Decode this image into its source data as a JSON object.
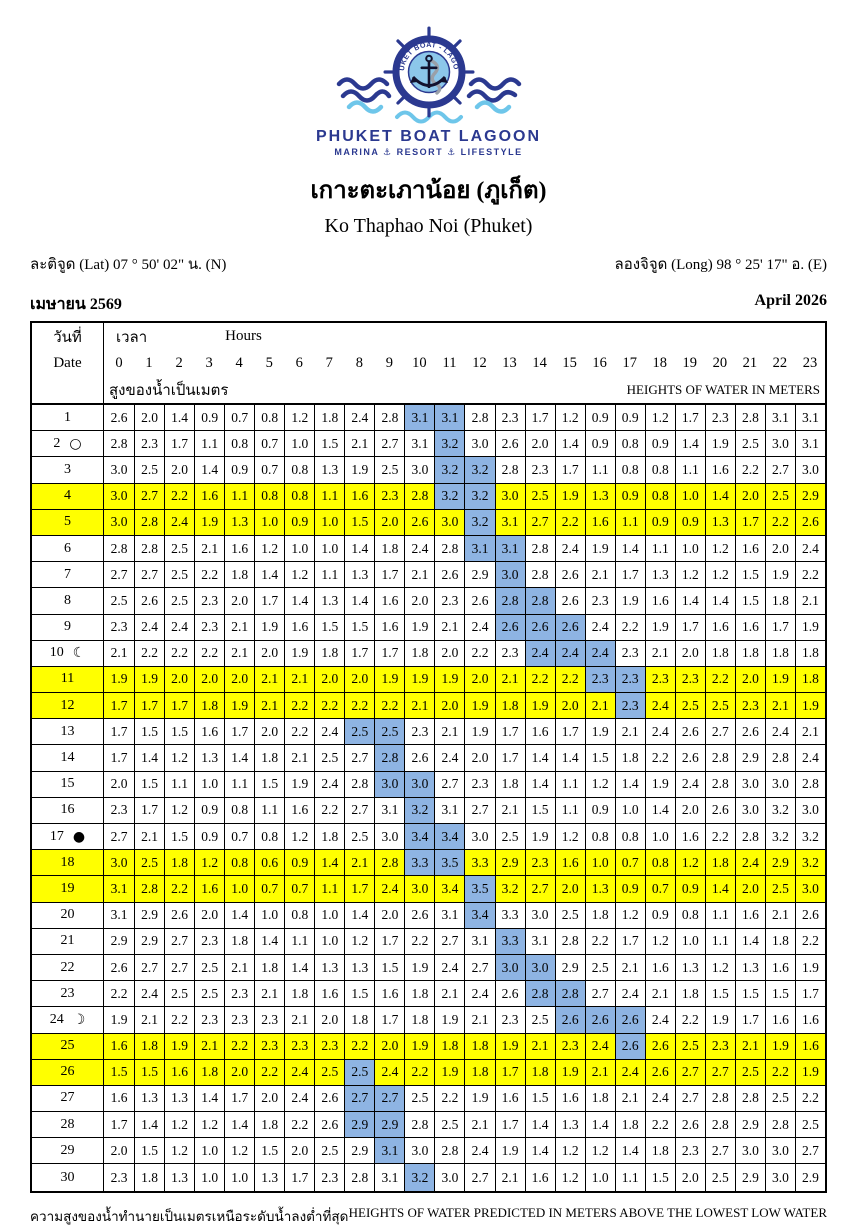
{
  "logo": {
    "arc_text": "PHUKET BOAT - LAGOON",
    "name": "PHUKET BOAT LAGOON",
    "tagline": "MARINA ⚓ RESORT ⚓ LIFESTYLE"
  },
  "title_thai": "เกาะตะเภาน้อย (ภูเก็ต)",
  "title_english": "Ko Thaphao Noi (Phuket)",
  "latitude": "ละติจูด (Lat) 07 ° 50' 02\" น. (N)",
  "longitude": "ลองจิจูด (Long) 98 ° 25' 17\" อ. (E)",
  "month_thai": "เมษายน 2569",
  "month_english": "April 2026",
  "colors": {
    "brand_navy": "#2b3990",
    "brand_lightblue": "#6ec6ea",
    "weekend_yellow": "#ffff00",
    "hightide_blue": "#8eb4e3"
  },
  "table": {
    "header": {
      "date_thai": "วันที่",
      "date_english": "Date",
      "time_thai": "เวลา",
      "time_english": "Hours",
      "hours": [
        "0",
        "1",
        "2",
        "3",
        "4",
        "5",
        "6",
        "7",
        "8",
        "9",
        "10",
        "11",
        "12",
        "13",
        "14",
        "15",
        "16",
        "17",
        "18",
        "19",
        "20",
        "21",
        "22",
        "23"
      ],
      "unit_thai": "สูงของน้ำเป็นเมตร",
      "unit_english": "HEIGHTS OF WATER IN METERS"
    },
    "rows": [
      {
        "date": 1,
        "moon_phase": null,
        "moon_symbol": null,
        "weekend": false,
        "highlight": [
          10,
          11
        ],
        "heights": [
          2.6,
          2.0,
          1.4,
          0.9,
          0.7,
          0.8,
          1.2,
          1.8,
          2.4,
          2.8,
          3.1,
          3.1,
          2.8,
          2.3,
          1.7,
          1.2,
          0.9,
          0.9,
          1.2,
          1.7,
          2.3,
          2.8,
          3.1,
          3.1
        ]
      },
      {
        "date": 2,
        "moon_phase": "full-moon",
        "moon_symbol": "○",
        "weekend": false,
        "highlight": [
          11
        ],
        "heights": [
          2.8,
          2.3,
          1.7,
          1.1,
          0.8,
          0.7,
          1.0,
          1.5,
          2.1,
          2.7,
          3.1,
          3.2,
          3.0,
          2.6,
          2.0,
          1.4,
          0.9,
          0.8,
          0.9,
          1.4,
          1.9,
          2.5,
          3.0,
          3.1
        ]
      },
      {
        "date": 3,
        "moon_phase": null,
        "moon_symbol": null,
        "weekend": false,
        "highlight": [
          11,
          12
        ],
        "heights": [
          3.0,
          2.5,
          2.0,
          1.4,
          0.9,
          0.7,
          0.8,
          1.3,
          1.9,
          2.5,
          3.0,
          3.2,
          3.2,
          2.8,
          2.3,
          1.7,
          1.1,
          0.8,
          0.8,
          1.1,
          1.6,
          2.2,
          2.7,
          3.0
        ]
      },
      {
        "date": 4,
        "moon_phase": null,
        "moon_symbol": null,
        "weekend": true,
        "highlight": [
          11,
          12
        ],
        "heights": [
          3.0,
          2.7,
          2.2,
          1.6,
          1.1,
          0.8,
          0.8,
          1.1,
          1.6,
          2.3,
          2.8,
          3.2,
          3.2,
          3.0,
          2.5,
          1.9,
          1.3,
          0.9,
          0.8,
          1.0,
          1.4,
          2.0,
          2.5,
          2.9
        ]
      },
      {
        "date": 5,
        "moon_phase": null,
        "moon_symbol": null,
        "weekend": true,
        "highlight": [
          12
        ],
        "heights": [
          3.0,
          2.8,
          2.4,
          1.9,
          1.3,
          1.0,
          0.9,
          1.0,
          1.5,
          2.0,
          2.6,
          3.0,
          3.2,
          3.1,
          2.7,
          2.2,
          1.6,
          1.1,
          0.9,
          0.9,
          1.3,
          1.7,
          2.2,
          2.6
        ]
      },
      {
        "date": 6,
        "moon_phase": null,
        "moon_symbol": null,
        "weekend": false,
        "highlight": [
          12,
          13
        ],
        "heights": [
          2.8,
          2.8,
          2.5,
          2.1,
          1.6,
          1.2,
          1.0,
          1.0,
          1.4,
          1.8,
          2.4,
          2.8,
          3.1,
          3.1,
          2.8,
          2.4,
          1.9,
          1.4,
          1.1,
          1.0,
          1.2,
          1.6,
          2.0,
          2.4
        ]
      },
      {
        "date": 7,
        "moon_phase": null,
        "moon_symbol": null,
        "weekend": false,
        "highlight": [
          13
        ],
        "heights": [
          2.7,
          2.7,
          2.5,
          2.2,
          1.8,
          1.4,
          1.2,
          1.1,
          1.3,
          1.7,
          2.1,
          2.6,
          2.9,
          3.0,
          2.8,
          2.6,
          2.1,
          1.7,
          1.3,
          1.2,
          1.2,
          1.5,
          1.9,
          2.2
        ]
      },
      {
        "date": 8,
        "moon_phase": null,
        "moon_symbol": null,
        "weekend": false,
        "highlight": [
          13,
          14
        ],
        "heights": [
          2.5,
          2.6,
          2.5,
          2.3,
          2.0,
          1.7,
          1.4,
          1.3,
          1.4,
          1.6,
          2.0,
          2.3,
          2.6,
          2.8,
          2.8,
          2.6,
          2.3,
          1.9,
          1.6,
          1.4,
          1.4,
          1.5,
          1.8,
          2.1
        ]
      },
      {
        "date": 9,
        "moon_phase": null,
        "moon_symbol": null,
        "weekend": false,
        "highlight": [
          13,
          14,
          15
        ],
        "heights": [
          2.3,
          2.4,
          2.4,
          2.3,
          2.1,
          1.9,
          1.6,
          1.5,
          1.5,
          1.6,
          1.9,
          2.1,
          2.4,
          2.6,
          2.6,
          2.6,
          2.4,
          2.2,
          1.9,
          1.7,
          1.6,
          1.6,
          1.7,
          1.9
        ]
      },
      {
        "date": 10,
        "moon_phase": "last-quarter-moon",
        "moon_symbol": "☾",
        "weekend": false,
        "highlight": [
          14,
          15,
          16
        ],
        "heights": [
          2.1,
          2.2,
          2.2,
          2.2,
          2.1,
          2.0,
          1.9,
          1.8,
          1.7,
          1.7,
          1.8,
          2.0,
          2.2,
          2.3,
          2.4,
          2.4,
          2.4,
          2.3,
          2.1,
          2.0,
          1.8,
          1.8,
          1.8,
          1.8
        ]
      },
      {
        "date": 11,
        "moon_phase": null,
        "moon_symbol": null,
        "weekend": true,
        "highlight": [
          16,
          17
        ],
        "heights": [
          1.9,
          1.9,
          2.0,
          2.0,
          2.0,
          2.1,
          2.1,
          2.0,
          2.0,
          1.9,
          1.9,
          1.9,
          2.0,
          2.1,
          2.2,
          2.2,
          2.3,
          2.3,
          2.3,
          2.3,
          2.2,
          2.0,
          1.9,
          1.8
        ]
      },
      {
        "date": 12,
        "moon_phase": null,
        "moon_symbol": null,
        "weekend": true,
        "highlight": [
          17
        ],
        "heights": [
          1.7,
          1.7,
          1.7,
          1.8,
          1.9,
          2.1,
          2.2,
          2.2,
          2.2,
          2.2,
          2.1,
          2.0,
          1.9,
          1.8,
          1.9,
          2.0,
          2.1,
          2.3,
          2.4,
          2.5,
          2.5,
          2.3,
          2.1,
          1.9
        ]
      },
      {
        "date": 13,
        "moon_phase": null,
        "moon_symbol": null,
        "weekend": false,
        "highlight": [
          8,
          9
        ],
        "heights": [
          1.7,
          1.5,
          1.5,
          1.6,
          1.7,
          2.0,
          2.2,
          2.4,
          2.5,
          2.5,
          2.3,
          2.1,
          1.9,
          1.7,
          1.6,
          1.7,
          1.9,
          2.1,
          2.4,
          2.6,
          2.7,
          2.6,
          2.4,
          2.1
        ]
      },
      {
        "date": 14,
        "moon_phase": null,
        "moon_symbol": null,
        "weekend": false,
        "highlight": [
          9
        ],
        "heights": [
          1.7,
          1.4,
          1.2,
          1.3,
          1.4,
          1.8,
          2.1,
          2.5,
          2.7,
          2.8,
          2.6,
          2.4,
          2.0,
          1.7,
          1.4,
          1.4,
          1.5,
          1.8,
          2.2,
          2.6,
          2.8,
          2.9,
          2.8,
          2.4
        ]
      },
      {
        "date": 15,
        "moon_phase": null,
        "moon_symbol": null,
        "weekend": false,
        "highlight": [
          9,
          10
        ],
        "heights": [
          2.0,
          1.5,
          1.1,
          1.0,
          1.1,
          1.5,
          1.9,
          2.4,
          2.8,
          3.0,
          3.0,
          2.7,
          2.3,
          1.8,
          1.4,
          1.1,
          1.2,
          1.4,
          1.9,
          2.4,
          2.8,
          3.0,
          3.0,
          2.8
        ]
      },
      {
        "date": 16,
        "moon_phase": null,
        "moon_symbol": null,
        "weekend": false,
        "highlight": [
          10
        ],
        "heights": [
          2.3,
          1.7,
          1.2,
          0.9,
          0.8,
          1.1,
          1.6,
          2.2,
          2.7,
          3.1,
          3.2,
          3.1,
          2.7,
          2.1,
          1.5,
          1.1,
          0.9,
          1.0,
          1.4,
          2.0,
          2.6,
          3.0,
          3.2,
          3.0
        ]
      },
      {
        "date": 17,
        "moon_phase": "new-moon",
        "moon_symbol": "●",
        "weekend": false,
        "highlight": [
          10,
          11
        ],
        "heights": [
          2.7,
          2.1,
          1.5,
          0.9,
          0.7,
          0.8,
          1.2,
          1.8,
          2.5,
          3.0,
          3.4,
          3.4,
          3.0,
          2.5,
          1.9,
          1.2,
          0.8,
          0.8,
          1.0,
          1.6,
          2.2,
          2.8,
          3.2,
          3.2
        ]
      },
      {
        "date": 18,
        "moon_phase": null,
        "moon_symbol": null,
        "weekend": true,
        "highlight": [
          10,
          11
        ],
        "heights": [
          3.0,
          2.5,
          1.8,
          1.2,
          0.8,
          0.6,
          0.9,
          1.4,
          2.1,
          2.8,
          3.3,
          3.5,
          3.3,
          2.9,
          2.3,
          1.6,
          1.0,
          0.7,
          0.8,
          1.2,
          1.8,
          2.4,
          2.9,
          3.2
        ]
      },
      {
        "date": 19,
        "moon_phase": null,
        "moon_symbol": null,
        "weekend": true,
        "highlight": [
          12
        ],
        "heights": [
          3.1,
          2.8,
          2.2,
          1.6,
          1.0,
          0.7,
          0.7,
          1.1,
          1.7,
          2.4,
          3.0,
          3.4,
          3.5,
          3.2,
          2.7,
          2.0,
          1.3,
          0.9,
          0.7,
          0.9,
          1.4,
          2.0,
          2.5,
          3.0
        ]
      },
      {
        "date": 20,
        "moon_phase": null,
        "moon_symbol": null,
        "weekend": false,
        "highlight": [
          12
        ],
        "heights": [
          3.1,
          2.9,
          2.6,
          2.0,
          1.4,
          1.0,
          0.8,
          1.0,
          1.4,
          2.0,
          2.6,
          3.1,
          3.4,
          3.3,
          3.0,
          2.5,
          1.8,
          1.2,
          0.9,
          0.8,
          1.1,
          1.6,
          2.1,
          2.6
        ]
      },
      {
        "date": 21,
        "moon_phase": null,
        "moon_symbol": null,
        "weekend": false,
        "highlight": [
          13
        ],
        "heights": [
          2.9,
          2.9,
          2.7,
          2.3,
          1.8,
          1.4,
          1.1,
          1.0,
          1.2,
          1.7,
          2.2,
          2.7,
          3.1,
          3.3,
          3.1,
          2.8,
          2.2,
          1.7,
          1.2,
          1.0,
          1.1,
          1.4,
          1.8,
          2.2
        ]
      },
      {
        "date": 22,
        "moon_phase": null,
        "moon_symbol": null,
        "weekend": false,
        "highlight": [
          13,
          14
        ],
        "heights": [
          2.6,
          2.7,
          2.7,
          2.5,
          2.1,
          1.8,
          1.4,
          1.3,
          1.3,
          1.5,
          1.9,
          2.4,
          2.7,
          3.0,
          3.0,
          2.9,
          2.5,
          2.1,
          1.6,
          1.3,
          1.2,
          1.3,
          1.6,
          1.9
        ]
      },
      {
        "date": 23,
        "moon_phase": null,
        "moon_symbol": null,
        "weekend": false,
        "highlight": [
          14,
          15
        ],
        "heights": [
          2.2,
          2.4,
          2.5,
          2.5,
          2.3,
          2.1,
          1.8,
          1.6,
          1.5,
          1.6,
          1.8,
          2.1,
          2.4,
          2.6,
          2.8,
          2.8,
          2.7,
          2.4,
          2.1,
          1.8,
          1.5,
          1.5,
          1.5,
          1.7
        ]
      },
      {
        "date": 24,
        "moon_phase": "first-quarter-moon",
        "moon_symbol": "☽",
        "weekend": false,
        "highlight": [
          15,
          16,
          17
        ],
        "heights": [
          1.9,
          2.1,
          2.2,
          2.3,
          2.3,
          2.3,
          2.1,
          2.0,
          1.8,
          1.7,
          1.8,
          1.9,
          2.1,
          2.3,
          2.5,
          2.6,
          2.6,
          2.6,
          2.4,
          2.2,
          1.9,
          1.7,
          1.6,
          1.6
        ]
      },
      {
        "date": 25,
        "moon_phase": null,
        "moon_symbol": null,
        "weekend": true,
        "highlight": [
          17
        ],
        "heights": [
          1.6,
          1.8,
          1.9,
          2.1,
          2.2,
          2.3,
          2.3,
          2.3,
          2.2,
          2.0,
          1.9,
          1.8,
          1.8,
          1.9,
          2.1,
          2.3,
          2.4,
          2.6,
          2.6,
          2.5,
          2.3,
          2.1,
          1.9,
          1.6
        ]
      },
      {
        "date": 26,
        "moon_phase": null,
        "moon_symbol": null,
        "weekend": true,
        "highlight": [
          8
        ],
        "heights": [
          1.5,
          1.5,
          1.6,
          1.8,
          2.0,
          2.2,
          2.4,
          2.5,
          2.5,
          2.4,
          2.2,
          1.9,
          1.8,
          1.7,
          1.8,
          1.9,
          2.1,
          2.4,
          2.6,
          2.7,
          2.7,
          2.5,
          2.2,
          1.9
        ]
      },
      {
        "date": 27,
        "moon_phase": null,
        "moon_symbol": null,
        "weekend": false,
        "highlight": [
          8,
          9
        ],
        "heights": [
          1.6,
          1.3,
          1.3,
          1.4,
          1.7,
          2.0,
          2.4,
          2.6,
          2.7,
          2.7,
          2.5,
          2.2,
          1.9,
          1.6,
          1.5,
          1.6,
          1.8,
          2.1,
          2.4,
          2.7,
          2.8,
          2.8,
          2.5,
          2.2
        ]
      },
      {
        "date": 28,
        "moon_phase": null,
        "moon_symbol": null,
        "weekend": false,
        "highlight": [
          8,
          9
        ],
        "heights": [
          1.7,
          1.4,
          1.2,
          1.2,
          1.4,
          1.8,
          2.2,
          2.6,
          2.9,
          2.9,
          2.8,
          2.5,
          2.1,
          1.7,
          1.4,
          1.3,
          1.4,
          1.8,
          2.2,
          2.6,
          2.8,
          2.9,
          2.8,
          2.5
        ]
      },
      {
        "date": 29,
        "moon_phase": null,
        "moon_symbol": null,
        "weekend": false,
        "highlight": [
          9
        ],
        "heights": [
          2.0,
          1.5,
          1.2,
          1.0,
          1.2,
          1.5,
          2.0,
          2.5,
          2.9,
          3.1,
          3.0,
          2.8,
          2.4,
          1.9,
          1.4,
          1.2,
          1.2,
          1.4,
          1.8,
          2.3,
          2.7,
          3.0,
          3.0,
          2.7
        ]
      },
      {
        "date": 30,
        "moon_phase": null,
        "moon_symbol": null,
        "weekend": false,
        "highlight": [
          10
        ],
        "heights": [
          2.3,
          1.8,
          1.3,
          1.0,
          1.0,
          1.3,
          1.7,
          2.3,
          2.8,
          3.1,
          3.2,
          3.0,
          2.7,
          2.1,
          1.6,
          1.2,
          1.0,
          1.1,
          1.5,
          2.0,
          2.5,
          2.9,
          3.0,
          2.9
        ]
      }
    ]
  },
  "footer": {
    "thai": "ความสูงของน้ำทำนายเป็นเมตรเหนือระดับน้ำลงต่ำที่สุด",
    "english": "HEIGHTS OF WATER PREDICTED IN METERS ABOVE THE LOWEST LOW WATER"
  }
}
